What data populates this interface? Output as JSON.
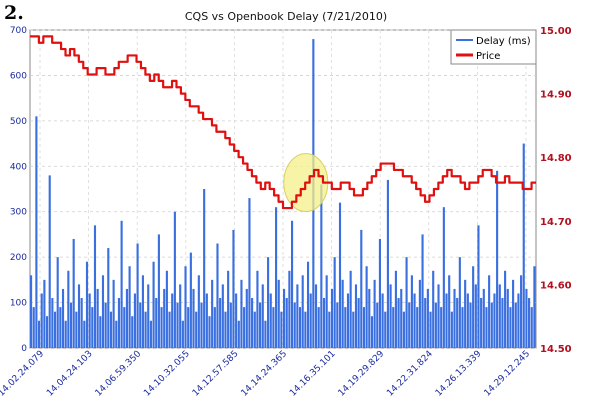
{
  "panel_label": "2.",
  "chart_data": {
    "type": "bar+line",
    "title": "CQS vs Openbook Delay (7/21/2010)",
    "xlabel": "",
    "ylabel_left": "",
    "ylabel_right": "",
    "left_axis": {
      "min": 0,
      "max": 700,
      "ticks": [
        0,
        100,
        200,
        300,
        400,
        500,
        600,
        700
      ]
    },
    "right_axis": {
      "min": 14.5,
      "max": 15.0,
      "ticks": [
        "14.50",
        "14.60",
        "14.70",
        "14.80",
        "14.90",
        "15.00"
      ]
    },
    "x_tick_labels": [
      "14.02.24.079",
      "14.04.24.103",
      "14.06.59.350",
      "14.10.32.055",
      "14.12.57.585",
      "14.14.24.365",
      "14.16.35.101",
      "14.19.29.829",
      "14.22.31.824",
      "14.26.13.339",
      "14.29.12.245"
    ],
    "grid": true,
    "legend_position": "top-right",
    "series": [
      {
        "name": "Delay (ms)",
        "kind": "bar",
        "axis": "left",
        "color": "#3a6fe0",
        "values": [
          160,
          90,
          510,
          60,
          120,
          150,
          70,
          380,
          110,
          80,
          200,
          90,
          130,
          60,
          170,
          100,
          240,
          80,
          140,
          110,
          60,
          190,
          120,
          90,
          270,
          130,
          70,
          160,
          100,
          220,
          80,
          150,
          60,
          110,
          280,
          90,
          130,
          180,
          70,
          120,
          230,
          100,
          160,
          80,
          140,
          60,
          190,
          110,
          250,
          90,
          130,
          170,
          80,
          120,
          300,
          100,
          140,
          60,
          180,
          90,
          210,
          130,
          80,
          160,
          100,
          350,
          120,
          70,
          150,
          90,
          230,
          110,
          140,
          80,
          170,
          100,
          260,
          120,
          60,
          150,
          90,
          130,
          330,
          110,
          80,
          170,
          100,
          140,
          60,
          200,
          120,
          90,
          310,
          150,
          80,
          130,
          110,
          170,
          280,
          100,
          140,
          90,
          160,
          80,
          190,
          120,
          680,
          140,
          90,
          360,
          110,
          160,
          80,
          130,
          200,
          100,
          320,
          150,
          90,
          120,
          170,
          80,
          140,
          110,
          260,
          90,
          180,
          130,
          70,
          150,
          100,
          240,
          120,
          80,
          370,
          140,
          90,
          170,
          110,
          130,
          80,
          200,
          100,
          160,
          120,
          90,
          150,
          250,
          110,
          130,
          80,
          170,
          100,
          140,
          90,
          310,
          120,
          160,
          80,
          130,
          110,
          200,
          90,
          150,
          120,
          100,
          180,
          140,
          270,
          110,
          130,
          90,
          160,
          100,
          120,
          390,
          140,
          110,
          170,
          130,
          90,
          150,
          100,
          120,
          160,
          450,
          130,
          110,
          90,
          180
        ]
      },
      {
        "name": "Price",
        "kind": "line",
        "axis": "right",
        "color": "#e01010",
        "values": [
          14.99,
          14.99,
          14.98,
          14.99,
          14.99,
          14.98,
          14.98,
          14.97,
          14.96,
          14.97,
          14.96,
          14.95,
          14.94,
          14.93,
          14.93,
          14.94,
          14.94,
          14.93,
          14.93,
          14.94,
          14.95,
          14.95,
          14.96,
          14.96,
          14.95,
          14.94,
          14.93,
          14.92,
          14.93,
          14.92,
          14.91,
          14.91,
          14.92,
          14.91,
          14.9,
          14.89,
          14.88,
          14.88,
          14.87,
          14.86,
          14.86,
          14.85,
          14.84,
          14.84,
          14.83,
          14.82,
          14.81,
          14.8,
          14.79,
          14.78,
          14.77,
          14.76,
          14.75,
          14.76,
          14.75,
          14.74,
          14.73,
          14.72,
          14.72,
          14.73,
          14.74,
          14.75,
          14.76,
          14.77,
          14.78,
          14.77,
          14.76,
          14.76,
          14.75,
          14.75,
          14.76,
          14.76,
          14.75,
          14.74,
          14.74,
          14.75,
          14.76,
          14.77,
          14.78,
          14.79,
          14.79,
          14.79,
          14.78,
          14.78,
          14.77,
          14.77,
          14.76,
          14.75,
          14.74,
          14.73,
          14.74,
          14.75,
          14.76,
          14.77,
          14.78,
          14.77,
          14.77,
          14.76,
          14.75,
          14.76,
          14.76,
          14.77,
          14.78,
          14.78,
          14.77,
          14.76,
          14.76,
          14.77,
          14.76,
          14.76,
          14.76,
          14.75,
          14.75,
          14.76
        ]
      }
    ],
    "annotation": {
      "shape": "ellipse",
      "color": "#f5f08a",
      "x_fraction_center": 0.545,
      "price_center": 14.76
    }
  }
}
